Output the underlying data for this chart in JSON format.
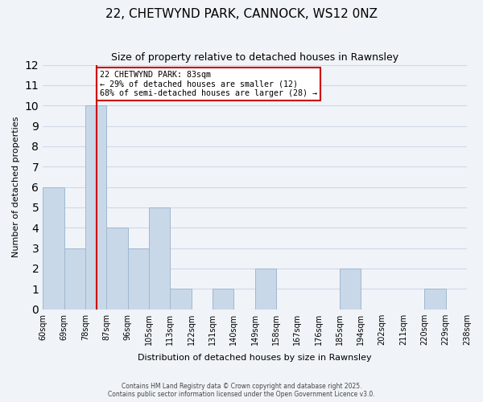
{
  "title": "22, CHETWYND PARK, CANNOCK, WS12 0NZ",
  "subtitle": "Size of property relative to detached houses in Rawnsley",
  "xlabel": "Distribution of detached houses by size in Rawnsley",
  "ylabel": "Number of detached properties",
  "footer_lines": [
    "Contains HM Land Registry data © Crown copyright and database right 2025.",
    "Contains public sector information licensed under the Open Government Licence v3.0."
  ],
  "bin_labels": [
    "60sqm",
    "69sqm",
    "78sqm",
    "87sqm",
    "96sqm",
    "105sqm",
    "113sqm",
    "122sqm",
    "131sqm",
    "140sqm",
    "149sqm",
    "158sqm",
    "167sqm",
    "176sqm",
    "185sqm",
    "194sqm",
    "202sqm",
    "211sqm",
    "220sqm",
    "229sqm",
    "238sqm"
  ],
  "bar_heights": [
    6,
    3,
    10,
    4,
    3,
    5,
    1,
    0,
    1,
    0,
    2,
    0,
    0,
    0,
    2,
    0,
    0,
    0,
    1,
    0
  ],
  "bar_color": "#c8d8e8",
  "bar_edge_color": "#a0b8d0",
  "annotation_title": "22 CHETWYND PARK: 83sqm",
  "annotation_line1": "← 29% of detached houses are smaller (12)",
  "annotation_line2": "68% of semi-detached houses are larger (28) →",
  "annotation_box_color": "#ffffff",
  "annotation_box_edge": "#cc0000",
  "subject_line_color": "#cc0000",
  "ylim": [
    0,
    12
  ],
  "yticks": [
    0,
    1,
    2,
    3,
    4,
    5,
    6,
    7,
    8,
    9,
    10,
    11,
    12
  ],
  "grid_color": "#d0d8e8",
  "background_color": "#f0f4f8"
}
